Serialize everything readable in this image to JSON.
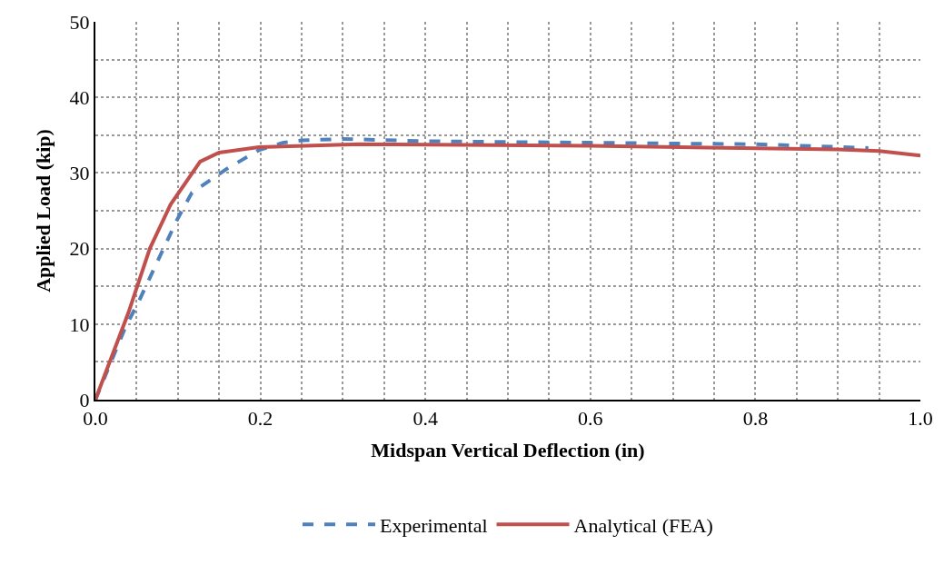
{
  "chart_data": {
    "type": "line",
    "xlabel": "Midspan Vertical Deflection (in)",
    "ylabel": "Applied Load (kip)",
    "xlim": [
      0,
      1
    ],
    "ylim": [
      0,
      50
    ],
    "xticks": [
      {
        "value": 0,
        "label": "0.0"
      },
      {
        "value": 0.05,
        "label": null
      },
      {
        "value": 0.1,
        "label": null
      },
      {
        "value": 0.15,
        "label": null
      },
      {
        "value": 0.2,
        "label": "0.2"
      },
      {
        "value": 0.25,
        "label": null
      },
      {
        "value": 0.3,
        "label": null
      },
      {
        "value": 0.35,
        "label": null
      },
      {
        "value": 0.4,
        "label": "0.4"
      },
      {
        "value": 0.45,
        "label": null
      },
      {
        "value": 0.5,
        "label": null
      },
      {
        "value": 0.55,
        "label": null
      },
      {
        "value": 0.6,
        "label": "0.6"
      },
      {
        "value": 0.65,
        "label": null
      },
      {
        "value": 0.7,
        "label": null
      },
      {
        "value": 0.75,
        "label": null
      },
      {
        "value": 0.8,
        "label": "0.8"
      },
      {
        "value": 0.85,
        "label": null
      },
      {
        "value": 0.9,
        "label": null
      },
      {
        "value": 0.95,
        "label": null
      },
      {
        "value": 1,
        "label": "1.0"
      }
    ],
    "yticks": [
      0,
      {
        "value": 5,
        "label": null
      },
      10,
      {
        "value": 15,
        "label": null
      },
      20,
      {
        "value": 25,
        "label": null
      },
      30,
      {
        "value": 35,
        "label": null
      },
      40,
      {
        "value": 45,
        "label": null
      },
      50
    ],
    "grid": true,
    "legend": "bottom",
    "marker": "none",
    "series": [
      {
        "name": "Experimental",
        "color": "#4f81bd",
        "line_style": "dashed",
        "x": [
          0,
          0.036,
          0.053,
          0.077,
          0.099,
          0.117,
          0.16,
          0.198,
          0.227,
          0.25,
          0.3,
          0.4,
          0.6,
          0.8,
          0.937
        ],
        "values": [
          0,
          9.5,
          13.1,
          18.7,
          23.8,
          27.4,
          30.6,
          33,
          34,
          34.3,
          34.5,
          34.2,
          34,
          33.8,
          33.3
        ]
      },
      {
        "name": "Analytical (FEA)",
        "color": "#c0504d",
        "line_style": "solid",
        "x": [
          0,
          0.04,
          0.066,
          0.091,
          0.127,
          0.15,
          0.198,
          0.32,
          0.6,
          0.9,
          0.95,
          1.0
        ],
        "values": [
          0,
          11.5,
          20,
          25.8,
          31.5,
          32.7,
          33.4,
          33.8,
          33.6,
          33.1,
          32.9,
          32.3
        ]
      }
    ]
  }
}
